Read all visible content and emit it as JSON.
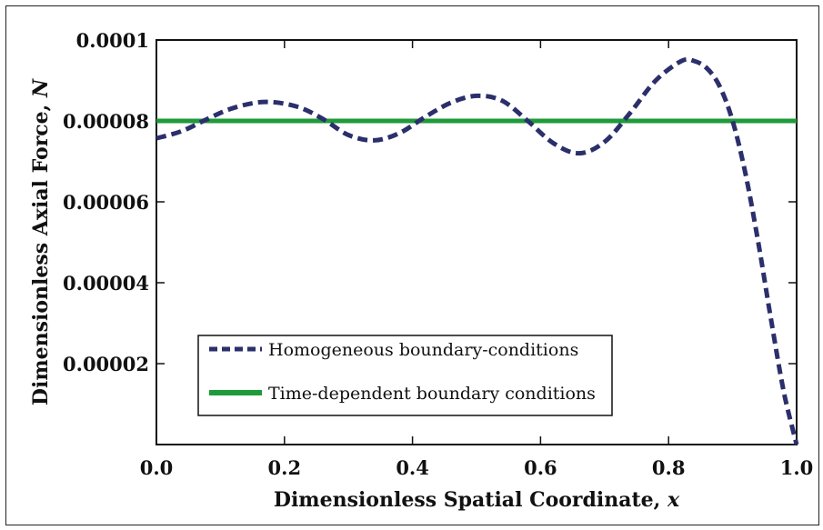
{
  "chart_data": {
    "type": "line",
    "xlabel": "Dimensionless Spatial Coordinate,",
    "xlabel_var": "x",
    "ylabel": "Dimensionless Axial Force,",
    "ylabel_var": "N",
    "xlim": [
      0.0,
      1.0
    ],
    "ylim": [
      0.0,
      0.0001
    ],
    "x_ticks": [
      "0.0",
      "0.2",
      "0.4",
      "0.6",
      "0.8",
      "1.0"
    ],
    "x_tick_values": [
      0.0,
      0.2,
      0.4,
      0.6,
      0.8,
      1.0
    ],
    "y_ticks": [
      "0.00002",
      "0.00004",
      "0.00006",
      "0.00008",
      "0.0001"
    ],
    "y_tick_values": [
      2e-05,
      4e-05,
      6e-05,
      8e-05,
      0.0001
    ],
    "grid": false,
    "legend_position": "bottom-left",
    "series": [
      {
        "name": "Homogeneous boundary-conditions",
        "style": "dashed",
        "color": "#2b2f6b",
        "x": [
          0.0,
          0.04,
          0.08,
          0.12,
          0.17,
          0.22,
          0.26,
          0.3,
          0.34,
          0.38,
          0.42,
          0.46,
          0.5,
          0.54,
          0.58,
          0.62,
          0.66,
          0.7,
          0.74,
          0.78,
          0.82,
          0.84,
          0.86,
          0.88,
          0.9,
          0.92,
          0.94,
          0.96,
          0.98,
          1.0
        ],
        "y": [
          7.57e-05,
          7.75e-05,
          8.05e-05,
          8.32e-05,
          8.47e-05,
          8.35e-05,
          8.05e-05,
          7.65e-05,
          7.52e-05,
          7.7e-05,
          8.1e-05,
          8.45e-05,
          8.62e-05,
          8.5e-05,
          8e-05,
          7.45e-05,
          7.2e-05,
          7.48e-05,
          8.2e-05,
          9e-05,
          9.48e-05,
          9.48e-05,
          9.3e-05,
          8.85e-05,
          8e-05,
          6.7e-05,
          5e-05,
          3.1e-05,
          1.3e-05,
          0.0
        ]
      },
      {
        "name": "Time-dependent boundary conditions",
        "style": "solid",
        "color": "#1f9a3a",
        "x": [
          0.0,
          1.0
        ],
        "y": [
          8e-05,
          8e-05
        ]
      }
    ]
  }
}
